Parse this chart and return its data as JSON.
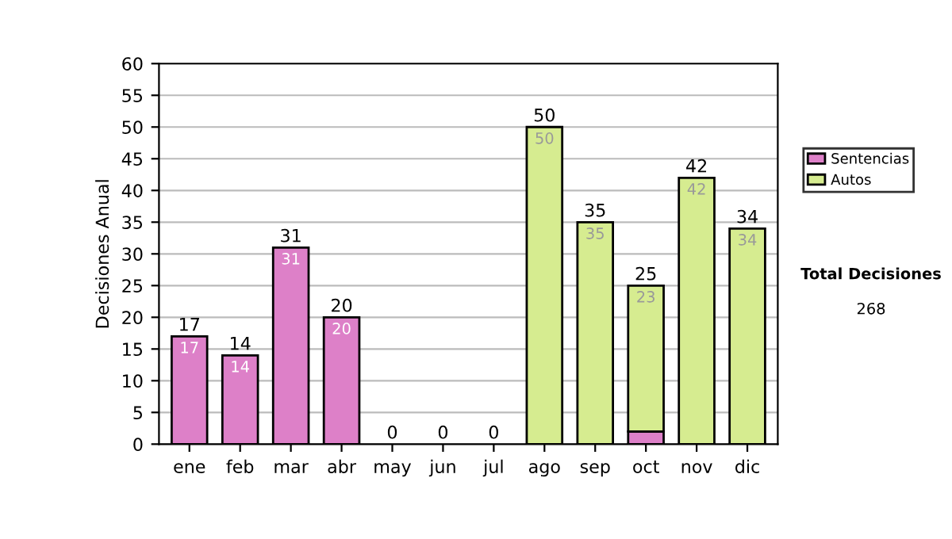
{
  "chart_data": {
    "type": "bar",
    "stacked": true,
    "ylabel": "Decisiones Anual",
    "categories": [
      "ene",
      "feb",
      "mar",
      "abr",
      "may",
      "jun",
      "jul",
      "ago",
      "sep",
      "oct",
      "nov",
      "dic"
    ],
    "series": [
      {
        "name": "Sentencias",
        "color": "#dd80c8",
        "values": [
          17,
          14,
          31,
          20,
          0,
          0,
          0,
          null,
          null,
          2,
          null,
          null
        ],
        "value_labels": [
          "17",
          "14",
          "31",
          "20",
          null,
          null,
          null,
          null,
          null,
          null,
          null,
          null
        ]
      },
      {
        "name": "Autos",
        "color": "#d6ec90",
        "values": [
          null,
          null,
          null,
          null,
          null,
          null,
          null,
          50,
          35,
          23,
          42,
          34
        ],
        "value_labels": [
          null,
          null,
          null,
          null,
          null,
          null,
          null,
          "50",
          "35",
          "23",
          "42",
          "34"
        ]
      }
    ],
    "totals": [
      "17",
      "14",
      "31",
      "20",
      "0",
      "0",
      "0",
      "50",
      "35",
      "25",
      "42",
      "34"
    ],
    "ylim": [
      0,
      60
    ],
    "yticks": [
      0,
      5,
      10,
      15,
      20,
      25,
      30,
      35,
      40,
      45,
      50,
      55,
      60
    ],
    "grid": "y",
    "legend": "right",
    "annotations": [
      "Total Decisiones",
      "268"
    ]
  }
}
